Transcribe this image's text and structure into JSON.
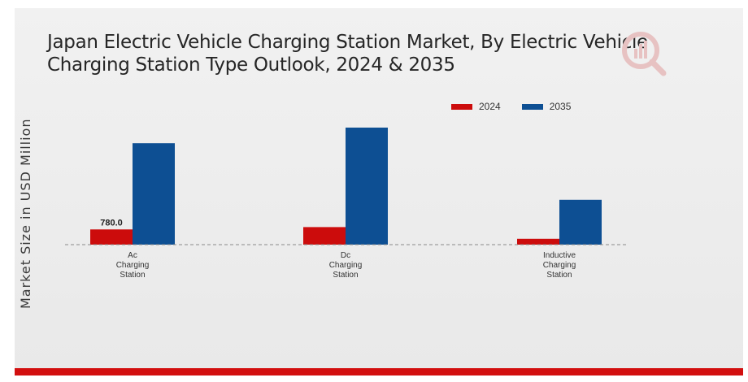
{
  "chart_data": {
    "type": "bar",
    "title": "Japan Electric Vehicle Charging Station Market, By Electric Vehicle Charging Station Type Outlook, 2024 & 2035",
    "ylabel": "Market Size in USD Million",
    "xlabel": "",
    "categories": [
      [
        "Ac",
        "Charging",
        "Station"
      ],
      [
        "Dc",
        "Charging",
        "Station"
      ],
      [
        "Inductive",
        "Charging",
        "Station"
      ]
    ],
    "series": [
      {
        "name": "2024",
        "color": "#cc0c0c",
        "values": [
          780.0,
          900.0,
          300.0
        ]
      },
      {
        "name": "2035",
        "color": "#0d4f93",
        "values": [
          5200.0,
          6000.0,
          2300.0
        ]
      }
    ],
    "data_labels": [
      {
        "series": 0,
        "index": 0,
        "text": "780.0"
      }
    ],
    "ylim": [
      0,
      6500
    ],
    "legend": "top-right",
    "grid": false
  }
}
